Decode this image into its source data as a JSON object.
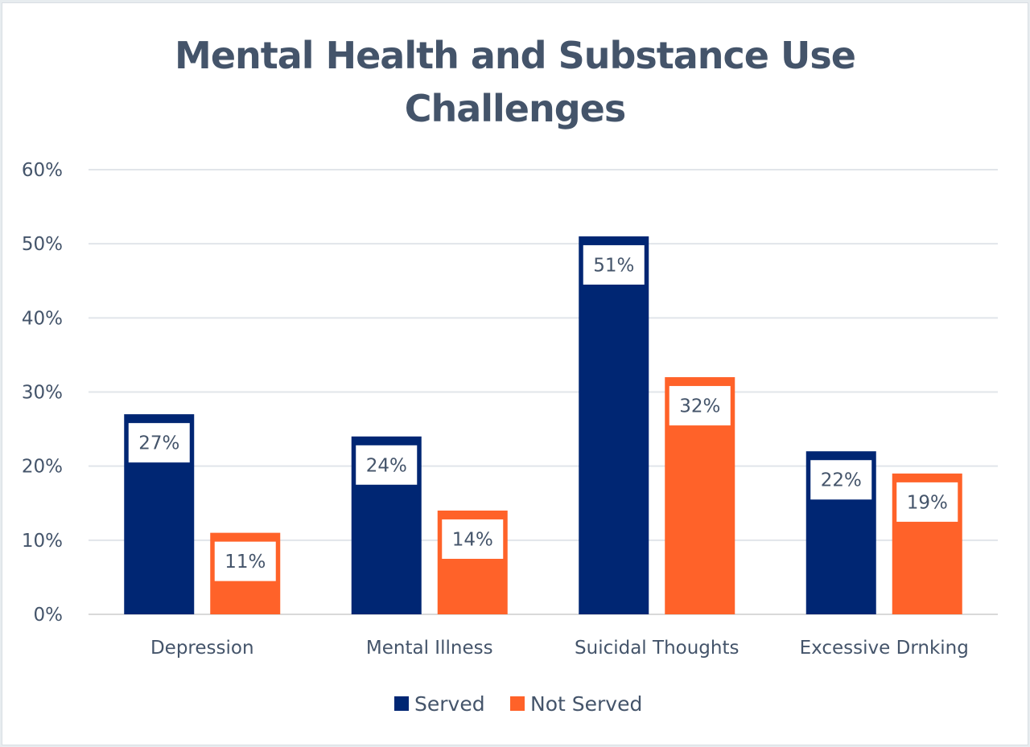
{
  "chart_data": {
    "type": "bar",
    "title": "Mental Health and Substance Use Challenges",
    "title_lines": [
      "Mental Health and Substance Use",
      "Challenges"
    ],
    "categories": [
      "Depression",
      "Mental Illness",
      "Suicidal Thoughts",
      "Excessive Drnking"
    ],
    "series": [
      {
        "name": "Served",
        "color": "#002673",
        "values": [
          27,
          24,
          51,
          22
        ],
        "labels": [
          "27%",
          "24%",
          "51%",
          "22%"
        ]
      },
      {
        "name": "Not Served",
        "color": "#ff6229",
        "values": [
          11,
          14,
          32,
          19
        ],
        "labels": [
          "11%",
          "14%",
          "32%",
          "19%"
        ]
      }
    ],
    "xlabel": "",
    "ylabel": "",
    "ylim": [
      0,
      60
    ],
    "yticks": [
      0,
      10,
      20,
      30,
      40,
      50,
      60
    ],
    "ytick_labels": [
      "0%",
      "10%",
      "20%",
      "30%",
      "40%",
      "50%",
      "60%"
    ],
    "grid": true,
    "legend_position": "bottom"
  }
}
